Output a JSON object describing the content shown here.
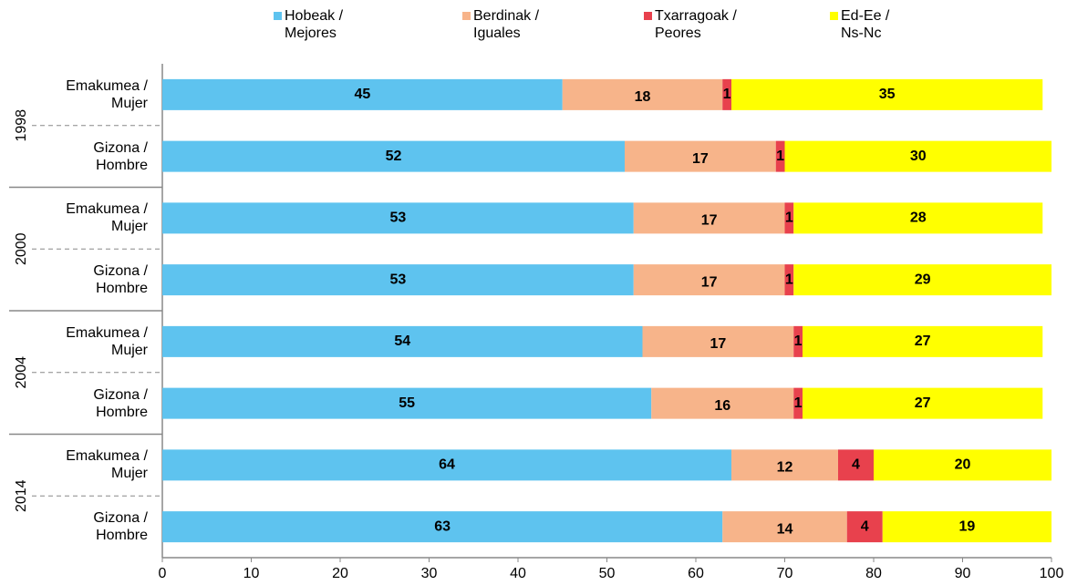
{
  "chart_data": {
    "type": "stacked-bar-horizontal",
    "groups": [
      "1998",
      "2000",
      "2004",
      "2014"
    ],
    "categories": [
      "Emakumea /\nMujer",
      "Gizona /\nHombre",
      "Emakumea /\nMujer",
      "Gizona /\nHombre",
      "Emakumea /\nMujer",
      "Gizona /\nHombre",
      "Emakumea /\nMujer",
      "Gizona /\nHombre"
    ],
    "series": [
      {
        "name": "Hobeak /\nMejores",
        "color": "#5ec3ef",
        "values": [
          45,
          52,
          53,
          53,
          54,
          55,
          64,
          63
        ]
      },
      {
        "name": "Berdinak /\nIguales",
        "color": "#f7b48a",
        "values": [
          18,
          17,
          17,
          17,
          17,
          16,
          12,
          14
        ]
      },
      {
        "name": "Txarragoak /\nPeores",
        "color": "#e8414d",
        "values": [
          1,
          1,
          1,
          1,
          1,
          1,
          4,
          4
        ]
      },
      {
        "name": "Ed-Ee /\nNs-Nc",
        "color": "#ffff00",
        "values": [
          35,
          30,
          28,
          29,
          27,
          27,
          20,
          19
        ]
      }
    ],
    "xlim": [
      0,
      100
    ],
    "xticks": [
      0,
      10,
      20,
      30,
      40,
      50,
      60,
      70,
      80,
      90,
      100
    ]
  }
}
